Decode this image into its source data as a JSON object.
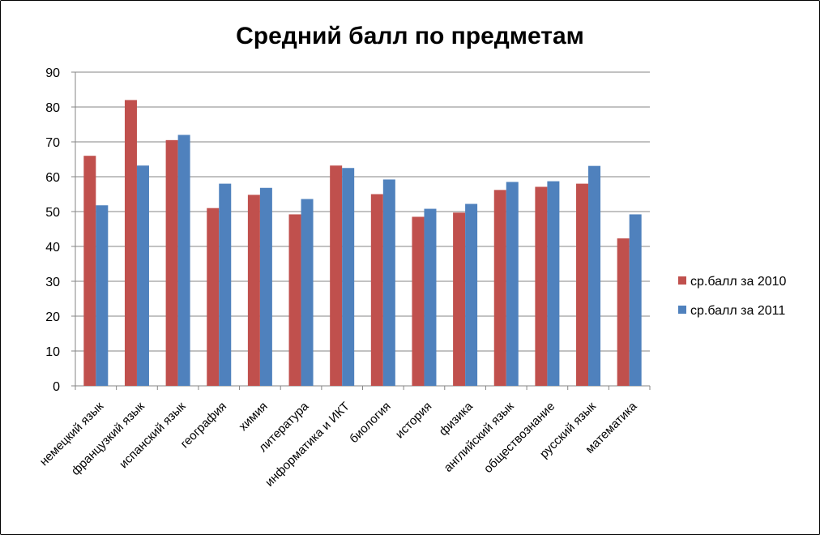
{
  "chart_data": {
    "type": "bar",
    "title": "Средний балл по предметам",
    "xlabel": "",
    "ylabel": "",
    "ylim": [
      0,
      90
    ],
    "yticks": [
      "0",
      "10",
      "20",
      "30",
      "40",
      "50",
      "60",
      "70",
      "80",
      "90"
    ],
    "grid": true,
    "legend_position": "right",
    "categories": [
      "немецкий язык",
      "французкий язык",
      "испанский язык",
      "география",
      "химия",
      "литература",
      "информатика и ИКТ",
      "биология",
      "история",
      "физика",
      "английский язык",
      "обществознание",
      "русский язык",
      "математика"
    ],
    "series": [
      {
        "name": "ср.балл за 2010",
        "color": "#C0504D",
        "values": [
          66,
          82,
          70.5,
          51,
          54.8,
          49.2,
          63.2,
          55,
          48.5,
          49.7,
          56.2,
          57.1,
          58,
          42.3
        ]
      },
      {
        "name": "ср.балл за 2011",
        "color": "#4F81BD",
        "values": [
          51.8,
          63.2,
          72,
          58,
          56.8,
          53.6,
          62.5,
          59.2,
          50.8,
          52.2,
          58.5,
          58.7,
          63.1,
          49.2
        ]
      }
    ]
  }
}
